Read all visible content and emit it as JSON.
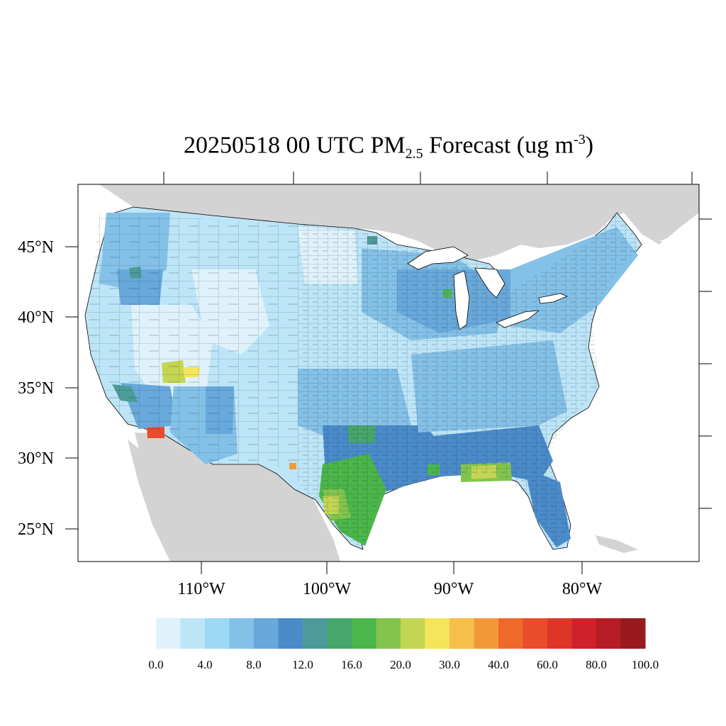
{
  "title": {
    "date_time": "20250518 00 UTC",
    "pollutant": "PM",
    "pollutant_subscript": "2.5",
    "suffix": "Forecast (ug m",
    "unit_superscript": "-3",
    "close": ")"
  },
  "axes": {
    "lat_labels": [
      "45°N",
      "40°N",
      "35°N",
      "30°N",
      "25°N"
    ],
    "lon_labels": [
      "110°W",
      "100°W",
      "90°W",
      "80°W"
    ]
  },
  "colorbar": {
    "colors": [
      "#dff2fb",
      "#bde5f8",
      "#9dd8f4",
      "#84c1e8",
      "#68a8db",
      "#4a8bca",
      "#4c9b9b",
      "#46a66c",
      "#4bb64a",
      "#83c44e",
      "#c3d653",
      "#f5e55a",
      "#f6bf4a",
      "#f39839",
      "#ef6a2a",
      "#e84d2c",
      "#dd3629",
      "#cf2129",
      "#b51c24",
      "#981a1f"
    ],
    "labels": [
      "0.0",
      "4.0",
      "8.0",
      "12.0",
      "16.0",
      "20.0",
      "30.0",
      "40.0",
      "60.0",
      "80.0",
      "100.0"
    ]
  },
  "map": {
    "background_land": "#d3d3d3",
    "ocean": "#ffffff",
    "border_color": "#000000",
    "region_hotspots": [
      {
        "name": "utah-hotspot",
        "level": 10
      },
      {
        "name": "arizona-hotspot",
        "level": 14
      },
      {
        "name": "south-texas-hotspot",
        "level": 9
      },
      {
        "name": "gulf-coast-hotspot",
        "level": 11
      },
      {
        "name": "west-texas-hotspot",
        "level": 13
      }
    ]
  }
}
